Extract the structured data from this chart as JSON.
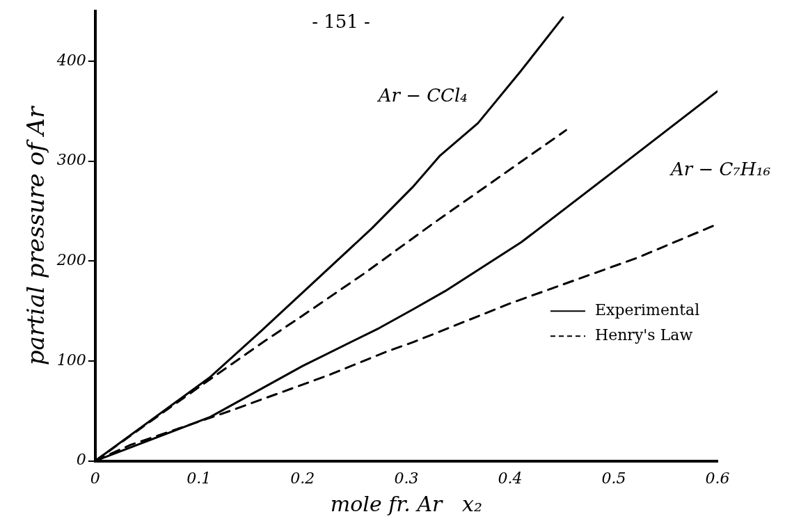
{
  "chart_data": {
    "type": "line",
    "xlabel": "mole fr. Ar   x₂",
    "ylabel": "partial pressure of Ar",
    "annotations": [
      "- 151 -",
      "Ar − CCl₄",
      "Ar − C₇H₁₆"
    ],
    "xlim": [
      0,
      0.6
    ],
    "ylim": [
      0,
      450
    ],
    "xticks": [
      0,
      0.1,
      0.2,
      0.3,
      0.4,
      0.5,
      0.6
    ],
    "yticks": [
      0,
      100,
      200,
      300,
      400
    ],
    "grid": false,
    "legend": "right",
    "marker": "none",
    "series": [
      {
        "name": "Experimental",
        "color": "#000000",
        "line_style": "solid",
        "x": [
          0,
          0.111,
          0.16,
          0.267,
          0.307,
          0.332,
          0.369,
          0.411,
          0.451
        ],
        "values": [
          0,
          84,
          130,
          233,
          275,
          305,
          338,
          391,
          444
        ]
      },
      {
        "name": "Henry's Law",
        "color": "#000000",
        "line_style": "dashed",
        "x": [
          0,
          0.0756,
          0.162,
          0.198,
          0.26,
          0.325,
          0.454
        ],
        "values": [
          0,
          56,
          119,
          144,
          188,
          237,
          331
        ]
      },
      {
        "color": "#000000",
        "line_style": "solid",
        "x": [
          0,
          0.111,
          0.2,
          0.274,
          0.307,
          0.3375,
          0.411,
          0.497,
          0.6
        ],
        "values": [
          0,
          44,
          95,
          133,
          152,
          170,
          219,
          287.5,
          370
        ]
      },
      {
        "color": "#000000",
        "line_style": "dashed",
        "x": [
          0,
          0.034,
          0.13,
          0.2255,
          0.28,
          0.307,
          0.401,
          0.522,
          0.6
        ],
        "values": [
          0,
          16,
          50,
          86,
          109,
          119,
          158,
          203,
          237
        ]
      }
    ]
  }
}
